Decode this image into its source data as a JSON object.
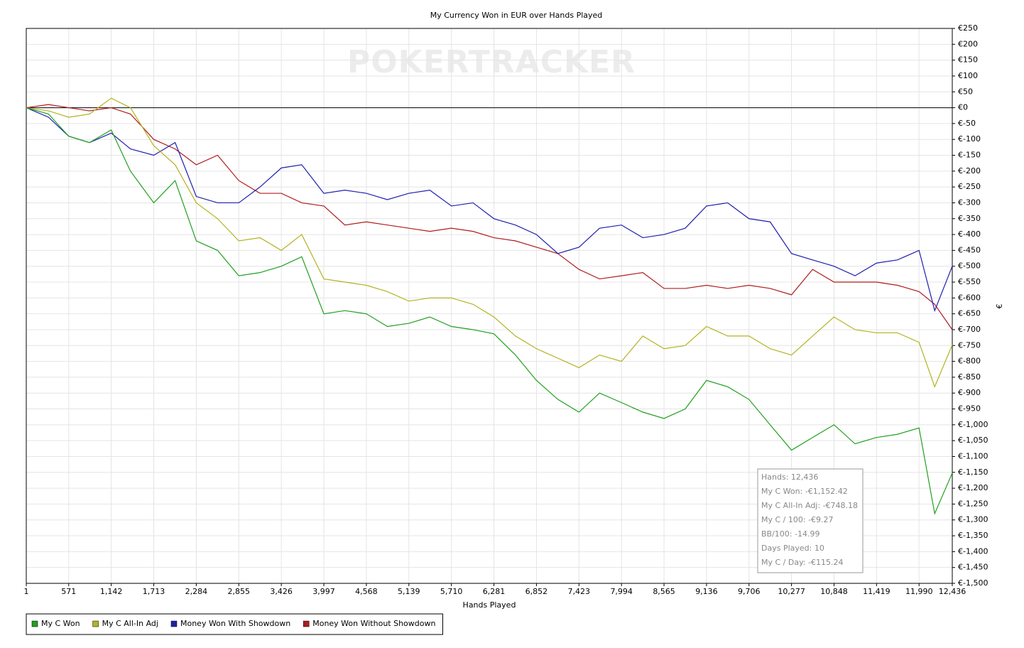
{
  "chart_data": {
    "type": "line",
    "title": "My Currency Won in EUR over Hands Played",
    "watermark": "POKERTRACKER",
    "x_label": "Hands Played",
    "y_label": "€",
    "x": [
      1,
      300,
      571,
      850,
      1142,
      1400,
      1713,
      2000,
      2284,
      2570,
      2855,
      3140,
      3426,
      3700,
      3997,
      4280,
      4568,
      4850,
      5139,
      5420,
      5710,
      6000,
      6281,
      6570,
      6852,
      7140,
      7423,
      7700,
      7994,
      8280,
      8565,
      8850,
      9136,
      9420,
      9706,
      9990,
      10277,
      10560,
      10848,
      11130,
      11419,
      11700,
      11990,
      12200,
      12436
    ],
    "series": [
      {
        "name": "My C Won",
        "color": "#1fa01f",
        "values": [
          0,
          -20,
          -90,
          -110,
          -70,
          -200,
          -300,
          -230,
          -420,
          -450,
          -530,
          -520,
          -500,
          -470,
          -650,
          -640,
          -650,
          -690,
          -680,
          -660,
          -690,
          -700,
          -713,
          -780,
          -860,
          -920,
          -960,
          -900,
          -930,
          -960,
          -980,
          -950,
          -860,
          -880,
          -920,
          -1000,
          -1080,
          -1040,
          -1000,
          -1060,
          -1040,
          -1030,
          -1010,
          -1280,
          -1152
        ]
      },
      {
        "name": "My C All-In Adj",
        "color": "#b3b321",
        "values": [
          0,
          -10,
          -30,
          -20,
          30,
          0,
          -120,
          -180,
          -300,
          -350,
          -420,
          -410,
          -450,
          -400,
          -540,
          -550,
          -560,
          -580,
          -610,
          -600,
          -600,
          -620,
          -660,
          -720,
          -760,
          -790,
          -820,
          -780,
          -800,
          -720,
          -760,
          -750,
          -690,
          -720,
          -720,
          -760,
          -780,
          -720,
          -660,
          -700,
          -710,
          -710,
          -740,
          -880,
          -748
        ]
      },
      {
        "name": "Money Won With Showdown",
        "color": "#1f1fae",
        "values": [
          0,
          -30,
          -90,
          -110,
          -80,
          -130,
          -150,
          -110,
          -280,
          -300,
          -300,
          -250,
          -190,
          -180,
          -270,
          -260,
          -270,
          -290,
          -270,
          -260,
          -310,
          -300,
          -350,
          -370,
          -400,
          -460,
          -440,
          -380,
          -370,
          -410,
          -400,
          -380,
          -310,
          -300,
          -350,
          -360,
          -460,
          -480,
          -500,
          -530,
          -490,
          -480,
          -450,
          -640,
          -500
        ]
      },
      {
        "name": "Money Won Without Showdown",
        "color": "#b01c1c",
        "values": [
          0,
          10,
          0,
          -10,
          0,
          -20,
          -100,
          -130,
          -180,
          -150,
          -230,
          -270,
          -270,
          -300,
          -310,
          -370,
          -360,
          -370,
          -380,
          -390,
          -380,
          -390,
          -410,
          -420,
          -440,
          -460,
          -510,
          -540,
          -530,
          -520,
          -570,
          -570,
          -560,
          -570,
          -560,
          -570,
          -590,
          -510,
          -550,
          -550,
          -550,
          -560,
          -580,
          -620,
          -700
        ]
      }
    ],
    "xlim": [
      1,
      12436
    ],
    "ylim": [
      -1500,
      250
    ],
    "xticks": [
      1,
      571,
      {
        "value": 1142,
        "label": "1,142"
      },
      {
        "value": 1713,
        "label": "1,713"
      },
      {
        "value": 2284,
        "label": "2,284"
      },
      {
        "value": 2855,
        "label": "2,855"
      },
      {
        "value": 3426,
        "label": "3,426"
      },
      {
        "value": 3997,
        "label": "3,997"
      },
      {
        "value": 4568,
        "label": "4,568"
      },
      {
        "value": 5139,
        "label": "5,139"
      },
      {
        "value": 5710,
        "label": "5,710"
      },
      {
        "value": 6281,
        "label": "6,281"
      },
      {
        "value": 6852,
        "label": "6,852"
      },
      {
        "value": 7423,
        "label": "7,423"
      },
      {
        "value": 7994,
        "label": "7,994"
      },
      {
        "value": 8565,
        "label": "8,565"
      },
      {
        "value": 9136,
        "label": "9,136"
      },
      {
        "value": 9706,
        "label": "9,706"
      },
      {
        "value": 10277,
        "label": "10,277"
      },
      {
        "value": 10848,
        "label": "10,848"
      },
      {
        "value": 11419,
        "label": "11,419"
      },
      {
        "value": 11990,
        "label": "11,990"
      },
      {
        "value": 12436,
        "label": "12,436"
      }
    ],
    "yticks": [
      {
        "value": 250,
        "label": "€250"
      },
      {
        "value": 200,
        "label": "€200"
      },
      {
        "value": 150,
        "label": "€150"
      },
      {
        "value": 100,
        "label": "€100"
      },
      {
        "value": 50,
        "label": "€50"
      },
      {
        "value": 0,
        "label": "€0"
      },
      {
        "value": -50,
        "label": "€-50"
      },
      {
        "value": -100,
        "label": "€-100"
      },
      {
        "value": -150,
        "label": "€-150"
      },
      {
        "value": -200,
        "label": "€-200"
      },
      {
        "value": -250,
        "label": "€-250"
      },
      {
        "value": -300,
        "label": "€-300"
      },
      {
        "value": -350,
        "label": "€-350"
      },
      {
        "value": -400,
        "label": "€-400"
      },
      {
        "value": -450,
        "label": "€-450"
      },
      {
        "value": -500,
        "label": "€-500"
      },
      {
        "value": -550,
        "label": "€-550"
      },
      {
        "value": -600,
        "label": "€-600"
      },
      {
        "value": -650,
        "label": "€-650"
      },
      {
        "value": -700,
        "label": "€-700"
      },
      {
        "value": -750,
        "label": "€-750"
      },
      {
        "value": -800,
        "label": "€-800"
      },
      {
        "value": -850,
        "label": "€-850"
      },
      {
        "value": -900,
        "label": "€-900"
      },
      {
        "value": -950,
        "label": "€-950"
      },
      {
        "value": -1000,
        "label": "€-1,000"
      },
      {
        "value": -1050,
        "label": "€-1,050"
      },
      {
        "value": -1100,
        "label": "€-1,100"
      },
      {
        "value": -1150,
        "label": "€-1,150"
      },
      {
        "value": -1200,
        "label": "€-1,200"
      },
      {
        "value": -1250,
        "label": "€-1,250"
      },
      {
        "value": -1300,
        "label": "€-1,300"
      },
      {
        "value": -1350,
        "label": "€-1,350"
      },
      {
        "value": -1400,
        "label": "€-1,400"
      },
      {
        "value": -1450,
        "label": "€-1,450"
      },
      {
        "value": -1500,
        "label": "€-1,500"
      }
    ],
    "grid": true,
    "zero_line": true,
    "legend_position": "bottom-left",
    "annotations": [
      "Hands: 12,436",
      "My C Won: -€1,152.42",
      "My C All-In Adj: -€748.18",
      "My C / 100: -€9.27",
      "BB/100: -14.99",
      "Days Played: 10",
      "My C / Day: -€115.24"
    ]
  }
}
